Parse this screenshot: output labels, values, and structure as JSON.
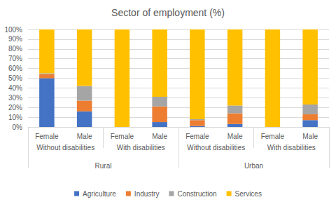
{
  "chart_data": {
    "type": "bar",
    "title": "Sector of employment (%)",
    "stacked": true,
    "grid": true,
    "legend": "bottom",
    "categories": [
      "Female",
      "Male",
      "Female",
      "Male",
      "Female",
      "Male",
      "Female",
      "Male"
    ],
    "category_levels": [
      [
        "Without disabilities",
        "Without disabilities",
        "With disabilities",
        "With disabilities",
        "Without disabilities",
        "Without disabilities",
        "With disabilities",
        "With disabilities"
      ],
      [
        "Rural",
        "Rural",
        "Rural",
        "Rural",
        "Urban",
        "Urban",
        "Urban",
        "Urban"
      ]
    ],
    "series": [
      {
        "name": "Agriculture",
        "color": "#4472c4",
        "values": [
          50,
          16,
          0,
          5,
          1,
          3,
          0,
          7
        ]
      },
      {
        "name": "Industry",
        "color": "#ed7d31",
        "values": [
          4,
          11,
          0,
          16,
          6,
          11,
          0,
          6
        ]
      },
      {
        "name": "Construction",
        "color": "#a5a5a5",
        "values": [
          1,
          15,
          0,
          10,
          1,
          8,
          0,
          10
        ]
      },
      {
        "name": "Services",
        "color": "#ffc000",
        "values": [
          45,
          58,
          100,
          69,
          92,
          78,
          100,
          77
        ]
      }
    ],
    "ylim": [
      0,
      100
    ],
    "yticks": [
      {
        "value": 0,
        "label": "0%"
      },
      {
        "value": 10,
        "label": "10%"
      },
      {
        "value": 20,
        "label": "20%"
      },
      {
        "value": 30,
        "label": "30%"
      },
      {
        "value": 40,
        "label": "40%"
      },
      {
        "value": 50,
        "label": "50%"
      },
      {
        "value": 60,
        "label": "60%"
      },
      {
        "value": 70,
        "label": "70%"
      },
      {
        "value": 80,
        "label": "80%"
      },
      {
        "value": 90,
        "label": "90%"
      },
      {
        "value": 100,
        "label": "100%"
      }
    ]
  }
}
